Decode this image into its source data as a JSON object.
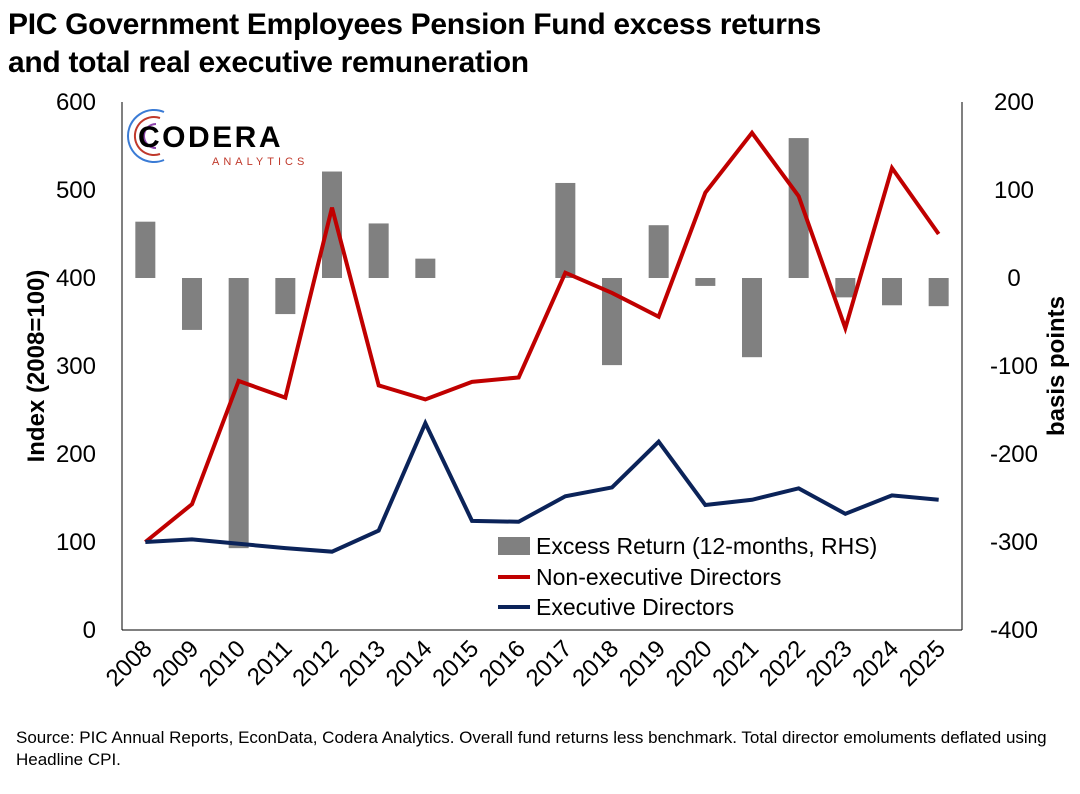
{
  "header": {
    "title_line1": "PIC Government Employees Pension Fund excess returns",
    "title_line2": "and total real executive remuneration"
  },
  "logo": {
    "name": "CODERA",
    "sub": "ANALYTICS"
  },
  "source": "Source: PIC Annual Reports, EconData, Codera Analytics. Overall fund returns less benchmark. Total director emoluments deflated using Headline CPI.",
  "colors": {
    "bars": "#808080",
    "non_exec": "#c00000",
    "exec": "#0b2359"
  },
  "chart_data": {
    "type": "bar+line",
    "categories": [
      "2008",
      "2009",
      "2010",
      "2011",
      "2012",
      "2013",
      "2014",
      "2015",
      "2016",
      "2017",
      "2018",
      "2019",
      "2020",
      "2021",
      "2022",
      "2023",
      "2024",
      "2025"
    ],
    "ylabel": "Index (2008=100)",
    "y2label": "basis points",
    "ylim": [
      0,
      600
    ],
    "y2lim": [
      -400,
      200
    ],
    "yticks": [
      0,
      100,
      200,
      300,
      400,
      500,
      600
    ],
    "y2ticks": [
      -400,
      -300,
      -200,
      -100,
      0,
      100,
      200
    ],
    "legend_position": "bottom-right inside plot",
    "series": [
      {
        "name": "Excess Return (12-months, RHS)",
        "kind": "bar",
        "axis": "right",
        "values": [
          64,
          -59,
          -307,
          -41,
          121,
          62,
          22,
          null,
          null,
          108,
          -99,
          60,
          -9,
          -90,
          159,
          -22,
          -31,
          -32
        ]
      },
      {
        "name": "Non-executive Directors",
        "kind": "line",
        "axis": "left",
        "values": [
          100,
          143,
          283,
          264,
          480,
          278,
          262,
          282,
          287,
          406,
          383,
          356,
          497,
          565,
          493,
          343,
          525,
          450
        ]
      },
      {
        "name": "Executive Directors",
        "kind": "line",
        "axis": "left",
        "values": [
          100,
          103,
          98,
          93,
          89,
          113,
          235,
          124,
          123,
          152,
          162,
          214,
          142,
          148,
          161,
          132,
          153,
          148
        ]
      }
    ]
  }
}
